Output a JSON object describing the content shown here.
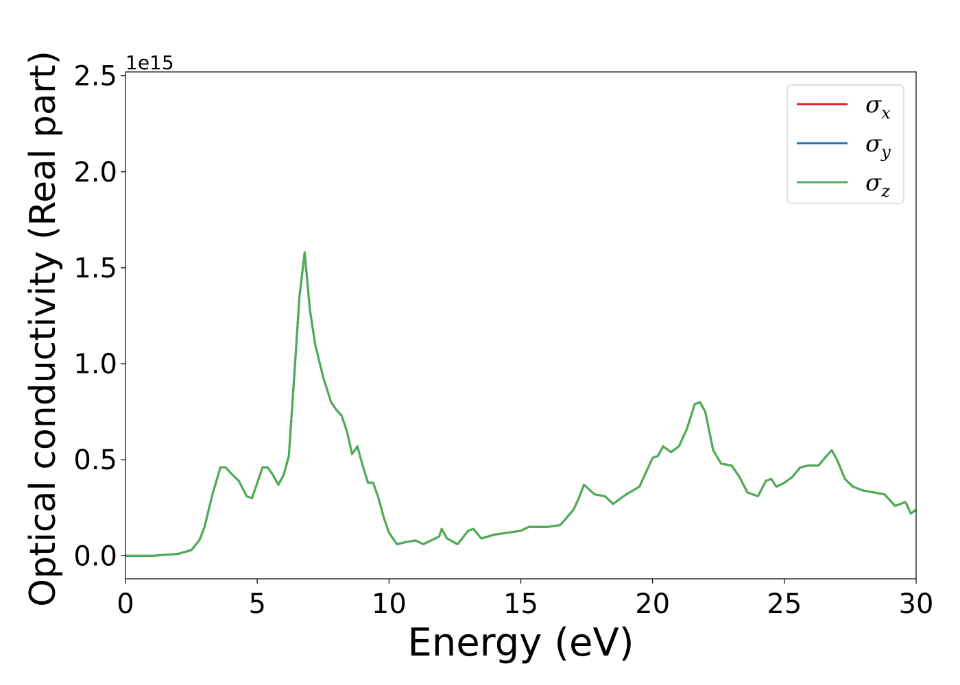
{
  "chart_data": {
    "type": "line",
    "xlabel": "Energy (eV)",
    "ylabel": "Optical conductivity (Real part)",
    "y_offset_label": "1e15",
    "xlim": [
      0,
      30
    ],
    "ylim": [
      -0.12,
      2.52
    ],
    "xticks": [
      0,
      5,
      10,
      15,
      20,
      25,
      30
    ],
    "xtick_labels": [
      "0",
      "5",
      "10",
      "15",
      "20",
      "25",
      "30"
    ],
    "yticks": [
      0.0,
      0.5,
      1.0,
      1.5,
      2.0,
      2.5
    ],
    "ytick_labels": [
      "0.0",
      "0.5",
      "1.0",
      "1.5",
      "2.0",
      "2.5"
    ],
    "grid": false,
    "legend_position": "top-right",
    "series": [
      {
        "name": "σx",
        "subscript": "x",
        "color": "#d62728"
      },
      {
        "name": "σy",
        "subscript": "y",
        "color": "#1f77b4"
      },
      {
        "name": "σz",
        "subscript": "z",
        "color": "#4caf50"
      }
    ],
    "x": [
      0,
      1,
      2,
      2.5,
      2.8,
      3.0,
      3.3,
      3.6,
      3.8,
      4.0,
      4.3,
      4.6,
      4.8,
      5.0,
      5.2,
      5.4,
      5.6,
      5.8,
      6.0,
      6.2,
      6.4,
      6.6,
      6.8,
      7.0,
      7.2,
      7.5,
      7.8,
      8.0,
      8.2,
      8.4,
      8.6,
      8.8,
      9.0,
      9.2,
      9.4,
      9.6,
      9.8,
      10.0,
      10.3,
      10.6,
      11.0,
      11.3,
      11.6,
      11.9,
      12.0,
      12.2,
      12.6,
      13.0,
      13.2,
      13.5,
      14.0,
      14.5,
      15.0,
      15.3,
      15.6,
      16.0,
      16.5,
      17.0,
      17.2,
      17.4,
      17.8,
      18.2,
      18.5,
      19.0,
      19.5,
      20.0,
      20.2,
      20.4,
      20.7,
      21.0,
      21.3,
      21.6,
      21.8,
      22.0,
      22.3,
      22.6,
      23.0,
      23.3,
      23.6,
      24.0,
      24.3,
      24.5,
      24.7,
      25.0,
      25.3,
      25.6,
      25.9,
      26.3,
      26.6,
      26.8,
      27.0,
      27.3,
      27.6,
      28.0,
      28.4,
      28.8,
      29.2,
      29.6,
      29.8,
      30.0
    ],
    "y": [
      0.0,
      0.0,
      0.01,
      0.03,
      0.08,
      0.15,
      0.32,
      0.46,
      0.46,
      0.43,
      0.39,
      0.31,
      0.3,
      0.38,
      0.46,
      0.46,
      0.42,
      0.37,
      0.42,
      0.52,
      0.93,
      1.35,
      1.58,
      1.28,
      1.1,
      0.93,
      0.8,
      0.76,
      0.73,
      0.65,
      0.53,
      0.57,
      0.47,
      0.38,
      0.38,
      0.3,
      0.2,
      0.12,
      0.06,
      0.07,
      0.08,
      0.06,
      0.08,
      0.1,
      0.14,
      0.09,
      0.06,
      0.13,
      0.14,
      0.09,
      0.11,
      0.12,
      0.13,
      0.15,
      0.15,
      0.15,
      0.16,
      0.24,
      0.3,
      0.37,
      0.32,
      0.31,
      0.27,
      0.32,
      0.36,
      0.51,
      0.52,
      0.57,
      0.54,
      0.57,
      0.66,
      0.79,
      0.8,
      0.75,
      0.55,
      0.48,
      0.47,
      0.41,
      0.33,
      0.31,
      0.39,
      0.4,
      0.36,
      0.38,
      0.41,
      0.46,
      0.47,
      0.47,
      0.52,
      0.55,
      0.5,
      0.4,
      0.36,
      0.34,
      0.33,
      0.32,
      0.26,
      0.28,
      0.22,
      0.24
    ]
  }
}
